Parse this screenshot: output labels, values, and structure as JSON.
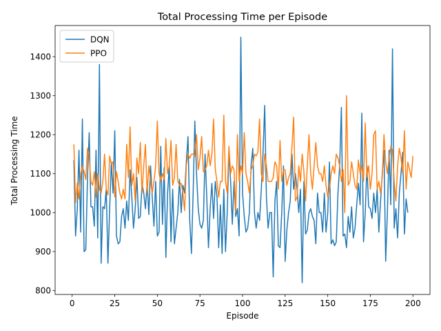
{
  "chart_data": {
    "type": "line",
    "title": "Total Processing Time per Episode",
    "xlabel": "Episode",
    "ylabel": "Total Processing Time",
    "xlim": [
      -10,
      210
    ],
    "ylim": [
      790,
      1480
    ],
    "xticks": [
      0,
      25,
      50,
      75,
      100,
      125,
      150,
      175,
      200
    ],
    "yticks": [
      800,
      900,
      1000,
      1100,
      1200,
      1300,
      1400
    ],
    "grid": false,
    "legend_position": "top-left",
    "series": [
      {
        "name": "DQN",
        "color": "#1f77b4",
        "x_start": 1,
        "values": [
          1135,
          940,
          1010,
          1160,
          950,
          1240,
          900,
          905,
          1090,
          1205,
          1015,
          1015,
          965,
          1160,
          935,
          1380,
          870,
          1015,
          1010,
          1060,
          870,
          1010,
          1130,
          1050,
          1210,
          940,
          920,
          925,
          990,
          1010,
          960,
          1030,
          980,
          1110,
          1040,
          960,
          1010,
          1090,
          985,
          990,
          1075,
          1050,
          1010,
          1075,
          995,
          1120,
          1040,
          965,
          1080,
          940,
          950,
          1170,
          970,
          1115,
          885,
          1050,
          1120,
          925,
          1060,
          920,
          960,
          1000,
          1085,
          1000,
          1070,
          1050,
          1130,
          1195,
          980,
          895,
          1050,
          1235,
          1100,
          1010,
          970,
          960,
          980,
          1150,
          1040,
          910,
          1010,
          1075,
          985,
          1080,
          1040,
          910,
          1020,
          895,
          1060,
          900,
          1000,
          1155,
          1080,
          970,
          1080,
          990,
          1010,
          940,
          1450,
          1050,
          990,
          950,
          960,
          1000,
          1120,
          1165,
          1000,
          960,
          1000,
          980,
          1060,
          1150,
          1275,
          1040,
          960,
          1000,
          1000,
          835,
          1030,
          1080,
          915,
          910,
          1000,
          1120,
          875,
          955,
          1000,
          1030,
          1150,
          1060,
          1100,
          1060,
          1000,
          1060,
          820,
          1080,
          945,
          955,
          1000,
          1010,
          990,
          980,
          920,
          1050,
          1000,
          1000,
          950,
          1050,
          950,
          1000,
          1130,
          920,
          930,
          915,
          925,
          1050,
          1120,
          1270,
          940,
          945,
          910,
          990,
          950,
          1015,
          935,
          960,
          1020,
          1075,
          1020,
          1255,
          925,
          1000,
          1120,
          1015,
          1010,
          985,
          1050,
          1000,
          1060,
          950,
          1030,
          1100,
          1160,
          875,
          1000,
          1160,
          1020,
          1420,
          960,
          1010,
          935,
          1050,
          1100,
          1155,
          945,
          1035,
          1000
        ]
      },
      {
        "name": "PPO",
        "color": "#ff7f0e",
        "x_start": 1,
        "values": [
          1175,
          1025,
          1075,
          1035,
          1100,
          1120,
          1105,
          1085,
          1165,
          1145,
          1080,
          1070,
          1105,
          1040,
          1100,
          1060,
          1050,
          1080,
          1150,
          1060,
          1045,
          1145,
          1125,
          1130,
          1040,
          1105,
          1080,
          1050,
          1035,
          1060,
          1035,
          1175,
          1090,
          1220,
          1070,
          1100,
          1030,
          1140,
          1100,
          1180,
          1050,
          1120,
          1175,
          1050,
          1120,
          1080,
          1050,
          1080,
          1120,
          1235,
          1100,
          1080,
          1100,
          1085,
          1190,
          1100,
          1120,
          1185,
          1070,
          1090,
          1175,
          1080,
          1070,
          1075,
          1050,
          1005,
          1120,
          1150,
          1140,
          1150,
          1150,
          1145,
          1200,
          1110,
          1140,
          1195,
          1105,
          1110,
          1120,
          1160,
          1120,
          1150,
          1240,
          1110,
          1080,
          1040,
          1080,
          1080,
          1250,
          1080,
          1050,
          1170,
          1100,
          1120,
          1110,
          1000,
          1200,
          1080,
          1120,
          1100,
          1205,
          1100,
          1080,
          1050,
          1110,
          1120,
          1150,
          1145,
          1155,
          1240,
          1100,
          1080,
          1150,
          1120,
          1080,
          1080,
          1080,
          1090,
          1130,
          1120,
          1060,
          1185,
          1080,
          1110,
          1110,
          1070,
          1090,
          1100,
          1170,
          1245,
          1030,
          1040,
          1120,
          1080,
          1150,
          1105,
          1030,
          1120,
          1200,
          1100,
          1060,
          1120,
          1180,
          1120,
          1100,
          1100,
          1080,
          1120,
          1070,
          1040,
          1060,
          1100,
          1120,
          1100,
          1150,
          1140,
          1120,
          1080,
          1110,
          1000,
          1300,
          1070,
          1080,
          1130,
          1100,
          1070,
          1060,
          1135,
          1100,
          1120,
          1080,
          1230,
          1090,
          1120,
          1060,
          1100,
          1200,
          1210,
          1060,
          1080,
          1050,
          1090,
          1200,
          1130,
          1100,
          1140,
          1170,
          1160,
          1080,
          1030,
          1120,
          1165,
          1140,
          1100,
          1210,
          1060,
          1130,
          1110,
          1090,
          1145
        ]
      }
    ]
  }
}
